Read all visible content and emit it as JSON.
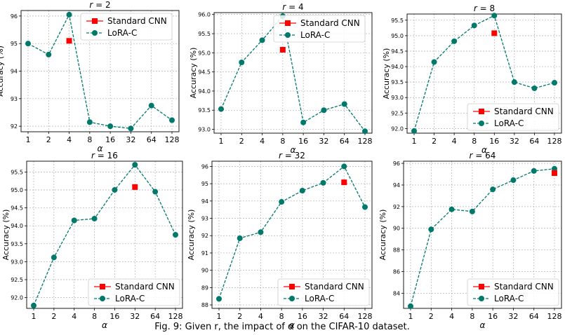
{
  "caption": "Fig. 9: Given r, the impact of α on the CIFAR-10 dataset.",
  "colors": {
    "lora": "#00796b",
    "standard": "#ff0000"
  },
  "chart_data": [
    {
      "type": "line",
      "title": "r = 2",
      "xlabel": "α",
      "ylabel": "Accuracy (%)",
      "categories": [
        "1",
        "2",
        "4",
        "8",
        "16",
        "32",
        "64",
        "128"
      ],
      "ylim": [
        91.8,
        96.2
      ],
      "yticks": [
        "92",
        "93",
        "94",
        "95",
        "96"
      ],
      "grid": true,
      "legend_position": "top-right",
      "series": [
        {
          "name": "LoRA-C",
          "values": [
            95.0,
            94.6,
            96.05,
            92.15,
            92.0,
            91.92,
            92.75,
            92.22
          ]
        },
        {
          "name": "Standard CNN",
          "index": 2,
          "value": 95.1
        }
      ]
    },
    {
      "type": "line",
      "title": "r = 4",
      "xlabel": "α",
      "ylabel": "Accuracy (%)",
      "categories": [
        "1",
        "2",
        "4",
        "8",
        "16",
        "32",
        "64",
        "128"
      ],
      "ylim": [
        92.9,
        96.05
      ],
      "yticks": [
        "93.0",
        "93.5",
        "94.0",
        "94.5",
        "95.0",
        "95.5",
        "96.0"
      ],
      "grid": true,
      "legend_position": "top-right",
      "series": [
        {
          "name": "LoRA-C",
          "values": [
            93.53,
            94.75,
            95.33,
            95.96,
            93.18,
            93.5,
            93.66,
            92.95
          ]
        },
        {
          "name": "Standard CNN",
          "index": 3,
          "value": 95.08
        }
      ]
    },
    {
      "type": "line",
      "title": "r = 8",
      "xlabel": "α",
      "ylabel": "Accuracy (%)",
      "categories": [
        "1",
        "2",
        "4",
        "8",
        "16",
        "32",
        "64",
        "128"
      ],
      "ylim": [
        91.85,
        95.7
      ],
      "yticks": [
        "92.0",
        "92.5",
        "93.0",
        "93.5",
        "94.0",
        "94.5",
        "95.0",
        "95.5"
      ],
      "grid": true,
      "legend_position": "lower-right",
      "series": [
        {
          "name": "LoRA-C",
          "values": [
            91.92,
            94.15,
            94.82,
            95.33,
            95.65,
            93.5,
            93.3,
            93.48
          ]
        },
        {
          "name": "Standard CNN",
          "index": 4,
          "value": 95.08
        }
      ]
    },
    {
      "type": "line",
      "title": "r = 16",
      "xlabel": "α",
      "ylabel": "Accuracy (%)",
      "categories": [
        "1",
        "2",
        "4",
        "8",
        "16",
        "32",
        "64",
        "128"
      ],
      "ylim": [
        91.7,
        95.8
      ],
      "yticks": [
        "92.0",
        "92.5",
        "93.0",
        "93.5",
        "94.0",
        "94.5",
        "95.0",
        "95.5"
      ],
      "grid": true,
      "legend_position": "lower-right",
      "series": [
        {
          "name": "LoRA-C",
          "values": [
            91.78,
            93.12,
            94.15,
            94.2,
            95.0,
            95.7,
            94.95,
            93.75
          ]
        },
        {
          "name": "Standard CNN",
          "index": 5,
          "value": 95.08
        }
      ]
    },
    {
      "type": "line",
      "title": "r = 32",
      "xlabel": "α",
      "ylabel": "Accuracy (%)",
      "categories": [
        "1",
        "2",
        "4",
        "8",
        "16",
        "32",
        "64",
        "128"
      ],
      "ylim": [
        87.8,
        96.3
      ],
      "yticks": [
        "88",
        "89",
        "90",
        "91",
        "92",
        "93",
        "94",
        "95",
        "96"
      ],
      "grid": true,
      "legend_position": "lower-right",
      "series": [
        {
          "name": "LoRA-C",
          "values": [
            88.35,
            91.85,
            92.2,
            93.95,
            94.6,
            95.05,
            96.0,
            93.65
          ]
        },
        {
          "name": "Standard CNN",
          "index": 6,
          "value": 95.08
        }
      ]
    },
    {
      "type": "line",
      "title": "r = 64",
      "xlabel": "α",
      "ylabel": "Accuracy (%)",
      "categories": [
        "1",
        "2",
        "4",
        "8",
        "16",
        "32",
        "64",
        "128"
      ],
      "ylim": [
        82.6,
        96.2
      ],
      "yticks": [
        "84",
        "86",
        "88",
        "90",
        "92",
        "94",
        "96"
      ],
      "grid": true,
      "legend_position": "lower-right",
      "series": [
        {
          "name": "LoRA-C",
          "values": [
            82.8,
            89.9,
            91.75,
            91.55,
            93.6,
            94.45,
            95.3,
            95.5
          ]
        },
        {
          "name": "Standard CNN",
          "index": 7,
          "value": 95.1
        }
      ]
    }
  ]
}
